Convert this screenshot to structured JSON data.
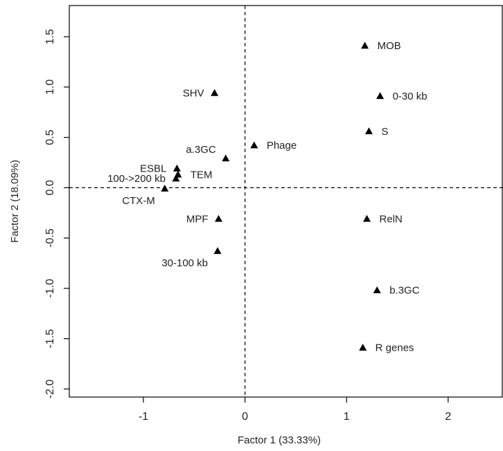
{
  "chart_data": {
    "type": "scatter",
    "xlabel": "Factor 1 (33.33%)",
    "ylabel": "Factor 2  (18.09%)",
    "xlim": [
      -1.73,
      2.54
    ],
    "ylim": [
      -2.08,
      1.81
    ],
    "x_ticks": [
      -1,
      0,
      1,
      2
    ],
    "y_ticks": [
      -2.0,
      -1.5,
      -1.0,
      -0.5,
      0.0,
      0.5,
      1.0,
      1.5
    ],
    "x_tick_labels": [
      "-1",
      "0",
      "1",
      "2"
    ],
    "y_tick_labels": [
      "-2.0",
      "-1.5",
      "-1.0",
      "-0.5",
      "0.0",
      "0.5",
      "1.0",
      "1.5"
    ],
    "reference_lines": {
      "x": 0,
      "y": 0,
      "style": "dashed"
    },
    "grid": false,
    "marker": "filled-triangle",
    "marker_color": "#000000",
    "points": [
      {
        "label": "MOB",
        "x": 1.18,
        "y": 1.41,
        "label_side": "right"
      },
      {
        "label": "SHV",
        "x": -0.3,
        "y": 0.94,
        "label_side": "left"
      },
      {
        "label": "0-30 kb",
        "x": 1.33,
        "y": 0.91,
        "label_side": "right"
      },
      {
        "label": "S",
        "x": 1.22,
        "y": 0.56,
        "label_side": "right"
      },
      {
        "label": "Phage",
        "x": 0.09,
        "y": 0.42,
        "label_side": "right"
      },
      {
        "label": "a.3GC",
        "x": -0.19,
        "y": 0.29,
        "label_side": "above-left"
      },
      {
        "label": "ESBL",
        "x": -0.67,
        "y": 0.19,
        "label_side": "left"
      },
      {
        "label": "TEM",
        "x": -0.66,
        "y": 0.13,
        "label_side": "right"
      },
      {
        "label": "100->200 kb",
        "x": -0.68,
        "y": 0.09,
        "label_side": "left"
      },
      {
        "label": "CTX-M",
        "x": -0.79,
        "y": -0.01,
        "label_side": "below-left"
      },
      {
        "label": "MPF",
        "x": -0.26,
        "y": -0.31,
        "label_side": "left"
      },
      {
        "label": "RelN",
        "x": 1.2,
        "y": -0.31,
        "label_side": "right"
      },
      {
        "label": "30-100 kb",
        "x": -0.27,
        "y": -0.63,
        "label_side": "below-left"
      },
      {
        "label": "b.3GC",
        "x": 1.3,
        "y": -1.02,
        "label_side": "right"
      },
      {
        "label": "R genes",
        "x": 1.16,
        "y": -1.59,
        "label_side": "right"
      }
    ]
  }
}
